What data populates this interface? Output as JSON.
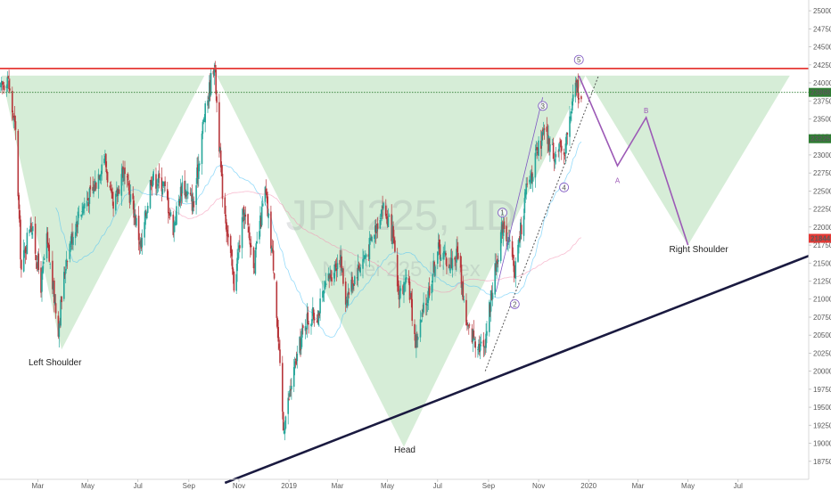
{
  "chart_data": {
    "type": "candlestick",
    "watermark": {
      "symbol": "JPN225, 1D",
      "name": "Nikkei 225 Index"
    },
    "xlim": [
      "2018-01-14",
      "2020-09-25"
    ],
    "ylim": [
      18500,
      25150
    ],
    "x_ticks": [
      {
        "date": "2018-03-01",
        "label": "Mar"
      },
      {
        "date": "2018-05-01",
        "label": "May"
      },
      {
        "date": "2018-07-01",
        "label": "Jul"
      },
      {
        "date": "2018-09-01",
        "label": "Sep"
      },
      {
        "date": "2018-11-01",
        "label": "Nov"
      },
      {
        "date": "2019-01-01",
        "label": "2019"
      },
      {
        "date": "2019-03-01",
        "label": "Mar"
      },
      {
        "date": "2019-05-01",
        "label": "May"
      },
      {
        "date": "2019-07-01",
        "label": "Jul"
      },
      {
        "date": "2019-09-01",
        "label": "Sep"
      },
      {
        "date": "2019-11-01",
        "label": "Nov"
      },
      {
        "date": "2020-01-01",
        "label": "2020"
      },
      {
        "date": "2020-03-01",
        "label": "Mar"
      },
      {
        "date": "2020-05-01",
        "label": "May"
      },
      {
        "date": "2020-07-01",
        "label": "Jul"
      }
    ],
    "y_ticks": [
      18750,
      19000,
      19250,
      19500,
      19750,
      20000,
      20250,
      20500,
      20750,
      21000,
      21250,
      21500,
      21750,
      22000,
      22250,
      22500,
      22750,
      23000,
      23250,
      23500,
      23750,
      24000,
      24250,
      24500,
      24750,
      25000
    ],
    "price_path": [
      [
        "2018-01-15",
        23900
      ],
      [
        "2018-01-23",
        24100
      ],
      [
        "2018-02-02",
        23300
      ],
      [
        "2018-02-09",
        21400
      ],
      [
        "2018-02-20",
        22100
      ],
      [
        "2018-03-05",
        21200
      ],
      [
        "2018-03-12",
        21800
      ],
      [
        "2018-03-26",
        20600
      ],
      [
        "2018-04-05",
        21600
      ],
      [
        "2018-04-20",
        22200
      ],
      [
        "2018-05-07",
        22500
      ],
      [
        "2018-05-21",
        23000
      ],
      [
        "2018-06-01",
        22200
      ],
      [
        "2018-06-12",
        22800
      ],
      [
        "2018-06-25",
        22300
      ],
      [
        "2018-07-05",
        21700
      ],
      [
        "2018-07-17",
        22700
      ],
      [
        "2018-08-01",
        22600
      ],
      [
        "2018-08-13",
        22000
      ],
      [
        "2018-08-24",
        22600
      ],
      [
        "2018-09-07",
        22300
      ],
      [
        "2018-09-18",
        23400
      ],
      [
        "2018-10-02",
        24300
      ],
      [
        "2018-10-11",
        22600
      ],
      [
        "2018-10-26",
        21200
      ],
      [
        "2018-11-07",
        22200
      ],
      [
        "2018-11-20",
        21500
      ],
      [
        "2018-12-03",
        22500
      ],
      [
        "2018-12-14",
        21400
      ],
      [
        "2018-12-25",
        19200
      ],
      [
        "2019-01-07",
        20000
      ],
      [
        "2019-01-21",
        20700
      ],
      [
        "2019-02-05",
        20800
      ],
      [
        "2019-02-19",
        21300
      ],
      [
        "2019-03-04",
        21600
      ],
      [
        "2019-03-11",
        21000
      ],
      [
        "2019-03-25",
        21400
      ],
      [
        "2019-04-08",
        21700
      ],
      [
        "2019-04-25",
        22300
      ],
      [
        "2019-05-07",
        21900
      ],
      [
        "2019-05-14",
        21100
      ],
      [
        "2019-05-27",
        21200
      ],
      [
        "2019-06-04",
        20400
      ],
      [
        "2019-06-18",
        21000
      ],
      [
        "2019-07-01",
        21700
      ],
      [
        "2019-07-16",
        21500
      ],
      [
        "2019-07-26",
        21650
      ],
      [
        "2019-08-06",
        20600
      ],
      [
        "2019-08-26",
        20300
      ],
      [
        "2019-09-05",
        21100
      ],
      [
        "2019-09-19",
        22100
      ],
      [
        "2019-10-03",
        21400
      ],
      [
        "2019-10-17",
        22500
      ],
      [
        "2019-11-07",
        23300
      ],
      [
        "2019-11-21",
        23000
      ],
      [
        "2019-12-03",
        23100
      ],
      [
        "2019-12-17",
        24000
      ],
      [
        "2019-12-23",
        23750
      ]
    ],
    "horizontal_lines": [
      {
        "price": 24200,
        "style": "solid",
        "color": "#e53935"
      },
      {
        "price": 23868,
        "style": "dotted",
        "color": "#2e7d32"
      }
    ],
    "price_labels": [
      {
        "price": 23868,
        "text": "23868",
        "color": "#2e7d32"
      },
      {
        "price": 23225,
        "text": "23225",
        "color": "#2e7d32"
      },
      {
        "price": 21844,
        "text": "21844",
        "color": "#e53935"
      }
    ],
    "shaded_triangles": [
      [
        [
          "2018-01-16",
          24100
        ],
        [
          "2018-03-30",
          20300
        ],
        [
          "2018-09-20",
          24100
        ]
      ],
      [
        "2018-10-05",
        24100
      ],
      [
        [
          "2018-10-05",
          24100
        ],
        [
          "2019-05-21",
          18950
        ],
        [
          "2019-12-28",
          24100
        ]
      ],
      [
        [
          "2019-12-28",
          24100
        ],
        [
          "2020-05-01",
          21750
        ],
        [
          "2020-09-02",
          24100
        ]
      ]
    ],
    "trendlines": [
      {
        "points": [
          [
            "2018-10-15",
            18450
          ],
          [
            "2020-09-25",
            21600
          ]
        ],
        "color": "#1a1a40",
        "width": 2.6
      },
      {
        "points": [
          [
            "2019-08-28",
            20000
          ],
          [
            "2020-01-13",
            24100
          ]
        ],
        "color": "#555555",
        "width": 1,
        "dash": true
      },
      {
        "points": [
          [
            "2019-09-10",
            21100
          ],
          [
            "2019-11-06",
            23800
          ]
        ],
        "color": "#7e57c2",
        "width": 0.8
      }
    ],
    "projection": {
      "color": "#9c59b6",
      "points": [
        [
          "2019-12-20",
          24100
        ],
        [
          "2020-02-05",
          22850
        ],
        [
          "2020-03-11",
          23520
        ],
        [
          "2020-05-01",
          21750
        ]
      ]
    },
    "wave_labels": [
      {
        "text": "1",
        "date": "2019-09-18",
        "price": 22200,
        "circled": true
      },
      {
        "text": "2",
        "date": "2019-10-03",
        "price": 20930,
        "circled": true
      },
      {
        "text": "3",
        "date": "2019-11-06",
        "price": 23680,
        "circled": true
      },
      {
        "text": "4",
        "date": "2019-12-02",
        "price": 22550,
        "circled": true
      },
      {
        "text": "5",
        "date": "2019-12-20",
        "price": 24320,
        "circled": true
      },
      {
        "text": "A",
        "date": "2020-02-05",
        "price": 22650,
        "circled": false
      },
      {
        "text": "B",
        "date": "2020-03-11",
        "price": 23620,
        "circled": false
      }
    ],
    "annotations": [
      {
        "text": "Left Shoulder",
        "date": "2018-03-22",
        "price": 20080
      },
      {
        "text": "Head",
        "date": "2019-05-22",
        "price": 18870
      },
      {
        "text": "Right Shoulder",
        "date": "2020-05-14",
        "price": 21650
      }
    ]
  }
}
